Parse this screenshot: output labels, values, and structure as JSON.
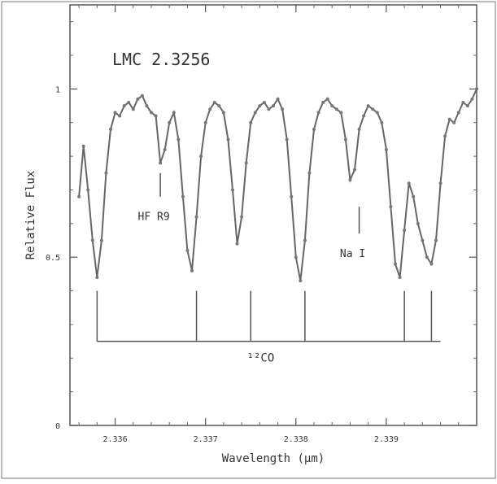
{
  "chart_data": {
    "type": "line",
    "title": "LMC 2.3256",
    "xlabel": "Wavelength (μm)",
    "ylabel": "Relative Flux",
    "xlim": [
      2.3355,
      2.34
    ],
    "ylim": [
      0,
      1.25
    ],
    "xticks": [
      "2.336",
      "2.337",
      "2.338",
      "2.339"
    ],
    "xtick_values": [
      2.336,
      2.337,
      2.338,
      2.339
    ],
    "yticks": [
      "0",
      "0.5",
      "1"
    ],
    "ytick_values": [
      0,
      0.5,
      1
    ],
    "grid": false,
    "series": [
      {
        "x": [
          2.3356,
          2.33565,
          2.3357,
          2.33575,
          2.3358,
          2.33585,
          2.3359,
          2.33595,
          2.336,
          2.33605,
          2.3361,
          2.33615,
          2.3362,
          2.33625,
          2.3363,
          2.33635,
          2.3364,
          2.33645,
          2.3365,
          2.33655,
          2.3366,
          2.33665,
          2.3367,
          2.33675,
          2.3368,
          2.33685,
          2.3369,
          2.33695,
          2.337,
          2.33705,
          2.3371,
          2.33715,
          2.3372,
          2.33725,
          2.3373,
          2.33735,
          2.3374,
          2.33745,
          2.3375,
          2.33755,
          2.3376,
          2.33765,
          2.3377,
          2.33775,
          2.3378,
          2.33785,
          2.3379,
          2.33795,
          2.338,
          2.33805,
          2.3381,
          2.33815,
          2.3382,
          2.33825,
          2.3383,
          2.33835,
          2.3384,
          2.33845,
          2.3385,
          2.33855,
          2.3386,
          2.33865,
          2.3387,
          2.33875,
          2.3388,
          2.33885,
          2.3389,
          2.33895,
          2.339,
          2.33905,
          2.3391,
          2.33915,
          2.3392,
          2.33925,
          2.3393,
          2.33935,
          2.3394,
          2.33945,
          2.3395,
          2.33955,
          2.3396,
          2.33965,
          2.3397,
          2.33975,
          2.3398,
          2.33985,
          2.3399,
          2.33995,
          2.34
        ],
        "values": [
          0.68,
          0.83,
          0.7,
          0.55,
          0.44,
          0.55,
          0.75,
          0.88,
          0.93,
          0.92,
          0.95,
          0.96,
          0.94,
          0.97,
          0.98,
          0.95,
          0.93,
          0.92,
          0.78,
          0.82,
          0.9,
          0.93,
          0.85,
          0.68,
          0.52,
          0.46,
          0.62,
          0.8,
          0.9,
          0.94,
          0.96,
          0.95,
          0.93,
          0.85,
          0.7,
          0.54,
          0.62,
          0.78,
          0.9,
          0.93,
          0.95,
          0.96,
          0.94,
          0.95,
          0.97,
          0.94,
          0.85,
          0.68,
          0.5,
          0.43,
          0.55,
          0.75,
          0.88,
          0.93,
          0.96,
          0.97,
          0.95,
          0.94,
          0.93,
          0.85,
          0.73,
          0.76,
          0.88,
          0.92,
          0.95,
          0.94,
          0.93,
          0.9,
          0.82,
          0.65,
          0.48,
          0.44,
          0.58,
          0.72,
          0.68,
          0.6,
          0.55,
          0.5,
          0.48,
          0.55,
          0.72,
          0.86,
          0.91,
          0.9,
          0.93,
          0.96,
          0.95,
          0.97,
          1.0
        ]
      }
    ],
    "annotations": [
      {
        "text": "HF R9",
        "x": 2.3365,
        "tick_top": 0.75,
        "tick_bottom": 0.68,
        "label_y": 0.61
      },
      {
        "text": "Na I",
        "x": 2.3387,
        "tick_top": 0.65,
        "tick_bottom": 0.57,
        "label_y": 0.5
      }
    ],
    "co_marker": {
      "label": "¹²CO",
      "line_x": [
        2.3358,
        2.3369,
        2.3375,
        2.3381,
        2.3392,
        2.3395
      ],
      "bar_x": [
        2.3358,
        2.3396
      ],
      "tick_top": 0.4,
      "bar_y": 0.25,
      "label_y": 0.19
    }
  }
}
